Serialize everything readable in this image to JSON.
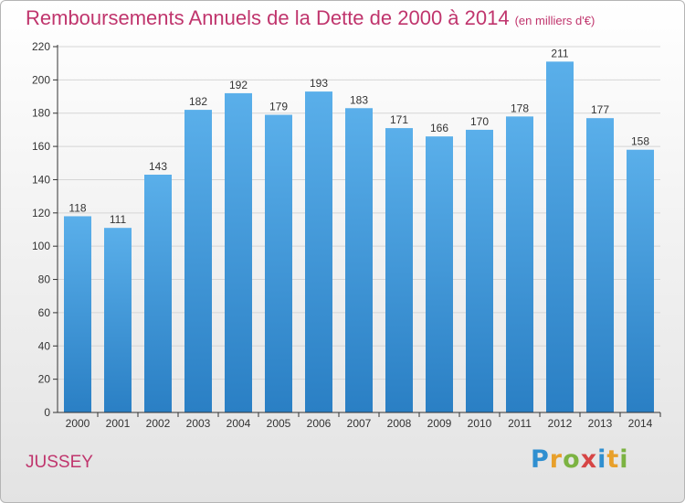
{
  "title": "Remboursements Annuels de la Dette de 2000 à 2014",
  "unit_note": "(en milliers d'€)",
  "city": "JUSSEY",
  "logo": {
    "text": "Proxiti",
    "letters": [
      {
        "ch": "P",
        "color": "#2f8fd0"
      },
      {
        "ch": "r",
        "color": "#e8a02b"
      },
      {
        "ch": "o",
        "color": "#7cb342"
      },
      {
        "ch": "x",
        "color": "#d64545"
      },
      {
        "ch": "i",
        "color": "#2f8fd0"
      },
      {
        "ch": "t",
        "color": "#e8a02b"
      },
      {
        "ch": "i",
        "color": "#7cb342"
      }
    ]
  },
  "colors": {
    "accent": "#c0356d",
    "bar_top": "#5aafea",
    "bar_bottom": "#2a7fc4",
    "grid": "#d6d6d6",
    "axis": "#333333"
  },
  "chart_data": {
    "type": "bar",
    "title": "Remboursements Annuels de la Dette de 2000 à 2014",
    "xlabel": "",
    "ylabel": "",
    "categories": [
      "2000",
      "2001",
      "2002",
      "2003",
      "2004",
      "2005",
      "2006",
      "2007",
      "2008",
      "2009",
      "2010",
      "2011",
      "2012",
      "2013",
      "2014"
    ],
    "values": [
      118,
      111,
      143,
      182,
      192,
      179,
      193,
      183,
      171,
      166,
      170,
      178,
      211,
      177,
      158
    ],
    "ylim": [
      0,
      220
    ],
    "yticks": [
      0,
      20,
      40,
      60,
      80,
      100,
      120,
      140,
      160,
      180,
      200,
      220
    ],
    "grid": true,
    "data_labels": true
  }
}
